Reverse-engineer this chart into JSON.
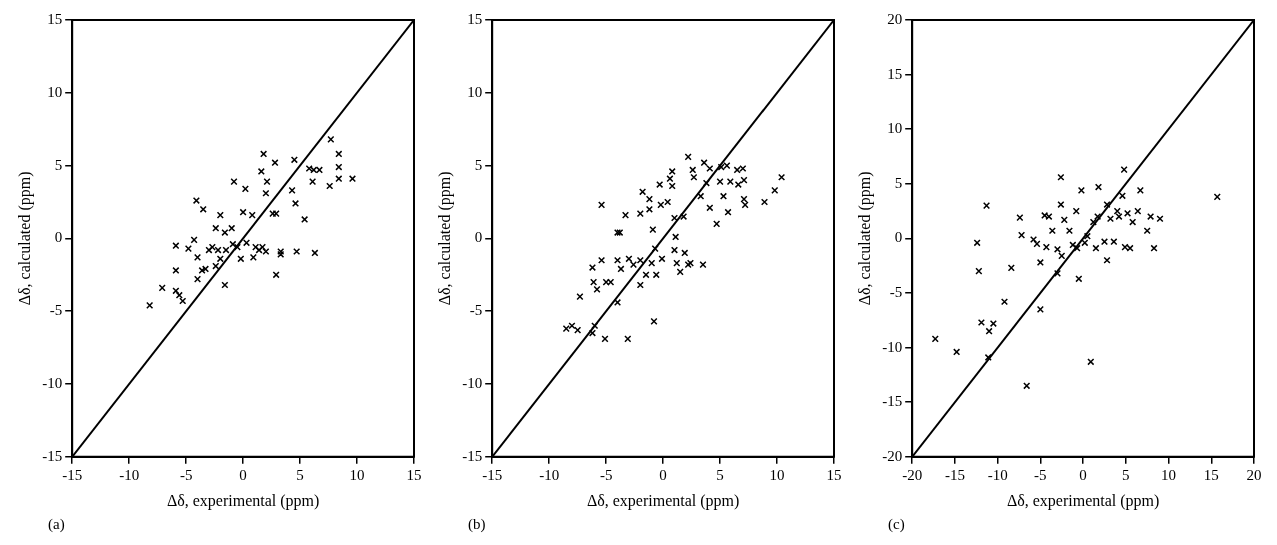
{
  "chart_data": [
    {
      "type": "scatter",
      "xlabel": "Δδ, experimental (ppm)",
      "ylabel": "Δδ, calculated (ppm)",
      "annotations": [
        "(a)"
      ],
      "xlim": [
        -15,
        15
      ],
      "ylim": [
        -15,
        15
      ],
      "xticks": [
        -15,
        -10,
        -5,
        0,
        5,
        10,
        15
      ],
      "yticks": [
        -15,
        -10,
        -5,
        0,
        5,
        10,
        15
      ],
      "grid": false,
      "legend": false,
      "series": [
        {
          "marker": "cross",
          "color": "#000000",
          "x": [
            -8.2,
            -7.1,
            -5.9,
            -5.9,
            -5.9,
            -5.6,
            -5.3,
            -4.8,
            -4.3,
            -4.1,
            -4.0,
            -4.0,
            -3.5,
            -3.6,
            -3.3,
            -3.0,
            -2.7,
            -2.2,
            -2.0,
            -2.4,
            -2.4,
            -2.0,
            -1.6,
            -1.6,
            -1.5,
            -1.0,
            -0.9,
            -0.8,
            -0.5,
            -0.2,
            0,
            0.2,
            0.3,
            0.8,
            0.9,
            1.1,
            1.4,
            1.6,
            1.7,
            1.8,
            2.0,
            2.0,
            2.1,
            2.6,
            2.8,
            2.9,
            2.9,
            3.3,
            3.3,
            4.3,
            4.5,
            4.6,
            4.7,
            5.4,
            5.8,
            6.1,
            6.2,
            6.3,
            6.7,
            7.6,
            7.7,
            8.4,
            8.4,
            8.4,
            9.6
          ],
          "values": [
            -4.6,
            -3.4,
            -0.5,
            -2.2,
            -3.6,
            -3.9,
            -4.3,
            -0.7,
            -0.1,
            2.6,
            -1.3,
            -2.8,
            2.0,
            -2.2,
            -2.1,
            -0.8,
            -0.6,
            -0.8,
            1.6,
            0.7,
            -1.9,
            -1.4,
            -3.2,
            0.4,
            -0.8,
            0.7,
            -0.4,
            3.9,
            -0.6,
            -1.4,
            1.8,
            3.4,
            -0.3,
            1.6,
            -1.3,
            -0.6,
            -0.8,
            4.6,
            -0.6,
            5.8,
            3.1,
            -0.9,
            3.9,
            1.7,
            5.2,
            1.7,
            -2.5,
            -1.1,
            -0.9,
            3.3,
            5.4,
            2.4,
            -0.9,
            1.3,
            4.8,
            3.9,
            4.7,
            -1.0,
            4.7,
            3.6,
            6.8,
            5.8,
            4.9,
            4.1,
            4.1
          ]
        },
        {
          "type": "line",
          "color": "#000000",
          "x": [
            -15,
            15
          ],
          "values": [
            -15,
            15
          ]
        }
      ]
    },
    {
      "type": "scatter",
      "xlabel": "Δδ, experimental (ppm)",
      "ylabel": "Δδ, calculated (ppm)",
      "annotations": [
        "(b)"
      ],
      "xlim": [
        -15,
        15
      ],
      "ylim": [
        -15,
        15
      ],
      "xticks": [
        -15,
        -10,
        -5,
        0,
        5,
        10,
        15
      ],
      "yticks": [
        -15,
        -10,
        -5,
        0,
        5,
        10,
        15
      ],
      "grid": false,
      "legend": false,
      "series": [
        {
          "marker": "cross",
          "color": "#000000",
          "x": [
            -8.5,
            -8.0,
            -7.5,
            -7.3,
            -6.2,
            -6.2,
            -6.0,
            -6.1,
            -5.8,
            -5.4,
            -5.4,
            -5.1,
            -5.0,
            -4.6,
            -4.0,
            -4.0,
            -3.8,
            -4.0,
            -3.7,
            -3.3,
            -3.1,
            -3.0,
            -2.6,
            -2.0,
            -2.0,
            -2.0,
            -1.8,
            -1.5,
            -1.2,
            -1.2,
            -1.0,
            -0.9,
            -0.8,
            -0.7,
            -0.6,
            -0.3,
            -0.2,
            -0.1,
            0.4,
            0.6,
            0.8,
            0.8,
            1.0,
            1.0,
            1.1,
            1.2,
            1.5,
            1.8,
            1.9,
            2.2,
            2.2,
            2.4,
            2.6,
            2.7,
            3.3,
            3.5,
            3.6,
            3.8,
            4.1,
            4.1,
            4.7,
            5.0,
            5.1,
            5.3,
            5.6,
            5.7,
            5.9,
            6.5,
            6.6,
            7.0,
            7.1,
            7.1,
            7.2,
            8.9,
            9.8,
            10.4
          ],
          "values": [
            -6.2,
            -6.0,
            -6.3,
            -4.0,
            -2.0,
            -6.5,
            -6.0,
            -3.0,
            -3.5,
            -1.5,
            2.3,
            -6.9,
            -3.0,
            -3.0,
            -1.5,
            0.4,
            0.4,
            -4.4,
            -2.1,
            1.6,
            -6.9,
            -1.4,
            -1.8,
            1.7,
            -3.2,
            -1.5,
            3.2,
            -2.5,
            2.7,
            2.0,
            -1.7,
            0.6,
            -5.7,
            -0.7,
            -2.5,
            3.7,
            2.3,
            -1.4,
            2.5,
            4.1,
            4.6,
            3.6,
            1.4,
            -0.8,
            0.1,
            -1.7,
            -2.3,
            1.5,
            -1.0,
            -1.8,
            5.6,
            -1.7,
            4.7,
            4.2,
            2.9,
            -1.8,
            5.2,
            3.8,
            4.8,
            2.1,
            1.0,
            3.9,
            4.9,
            2.9,
            5.0,
            1.8,
            3.9,
            4.7,
            3.7,
            4.8,
            4.0,
            2.7,
            2.3,
            2.5,
            3.3,
            4.2
          ]
        },
        {
          "type": "line",
          "color": "#000000",
          "x": [
            -15,
            15
          ],
          "values": [
            -15,
            15
          ]
        }
      ]
    },
    {
      "type": "scatter",
      "xlabel": "Δδ, experimental (ppm)",
      "ylabel": "Δδ, calculated (ppm)",
      "annotations": [
        "(c)"
      ],
      "xlim": [
        -20,
        20
      ],
      "ylim": [
        -20,
        20
      ],
      "xticks": [
        -20,
        -15,
        -10,
        -5,
        0,
        5,
        10,
        15,
        20
      ],
      "yticks": [
        -20,
        -15,
        -10,
        -5,
        0,
        5,
        10,
        15,
        20
      ],
      "grid": false,
      "legend": false,
      "series": [
        {
          "marker": "cross",
          "color": "#000000",
          "x": [
            -17.3,
            -14.8,
            -12.4,
            -12.2,
            -11.9,
            -11.3,
            -11.0,
            -11.1,
            -10.5,
            -9.2,
            -8.4,
            -7.4,
            -7.2,
            -6.6,
            -5.8,
            -5.4,
            -5.0,
            -5.0,
            -4.5,
            -4.3,
            -4.0,
            -3.6,
            -3.0,
            -3.0,
            -2.6,
            -2.6,
            -2.5,
            -2.2,
            -1.6,
            -1.2,
            -0.8,
            -0.7,
            -0.5,
            -0.2,
            0.2,
            0.5,
            0.9,
            1.2,
            1.5,
            1.7,
            1.8,
            2.5,
            2.8,
            2.8,
            3.2,
            3.6,
            4.0,
            4.2,
            4.6,
            4.8,
            4.9,
            5.2,
            5.5,
            5.8,
            6.4,
            6.7,
            7.5,
            7.9,
            8.3,
            9.0,
            15.7
          ],
          "values": [
            -9.2,
            -10.4,
            -0.4,
            -3.0,
            -7.7,
            3.0,
            -8.5,
            -10.9,
            -7.8,
            -5.8,
            -2.7,
            1.9,
            0.3,
            -13.5,
            -0.1,
            -0.5,
            -2.2,
            -6.5,
            2.1,
            -0.8,
            2.0,
            0.7,
            -3.2,
            -1.0,
            3.1,
            5.6,
            -1.6,
            1.7,
            0.7,
            -0.6,
            2.5,
            -0.9,
            -3.7,
            4.4,
            -0.4,
            0.2,
            -11.3,
            1.5,
            -0.9,
            2.0,
            4.7,
            -0.3,
            3.1,
            -2.0,
            1.8,
            -0.3,
            2.5,
            2.0,
            3.9,
            6.3,
            -0.8,
            2.3,
            -0.9,
            1.5,
            2.5,
            4.4,
            0.7,
            2.0,
            -0.9,
            1.8,
            3.8
          ]
        },
        {
          "type": "line",
          "color": "#000000",
          "x": [
            -20,
            20
          ],
          "values": [
            -20,
            20
          ]
        }
      ]
    }
  ]
}
